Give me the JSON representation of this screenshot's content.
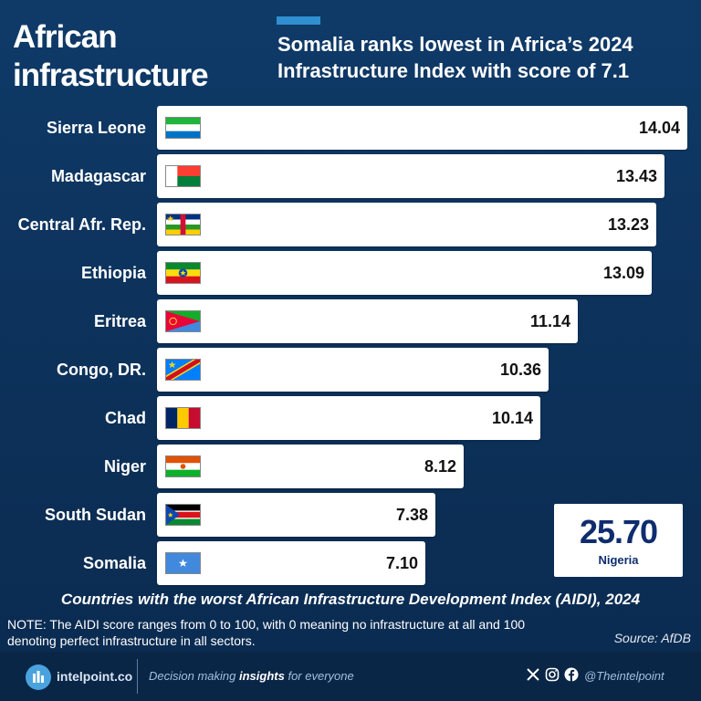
{
  "header": {
    "title": "African infrastructure",
    "subtitle": "Somalia ranks lowest in Africa’s 2024 Infrastructure Index with score of 7.1"
  },
  "colors": {
    "background": "#0f3a68",
    "bar": "#ffffff",
    "accent": "#2f8fd0",
    "highlight_text": "#0f2d6e"
  },
  "chart_data": {
    "type": "bar",
    "orientation": "horizontal",
    "title": "Countries with the worst African Infrastructure Development Index (AIDI), 2024",
    "categories": [
      "Sierra Leone",
      "Madagascar",
      "Central Afr. Rep.",
      "Ethiopia",
      "Eritrea",
      "Congo, DR.",
      "Chad",
      "Niger",
      "South Sudan",
      "Somalia"
    ],
    "values": [
      14.04,
      13.43,
      13.23,
      13.09,
      11.14,
      10.36,
      10.14,
      8.12,
      7.38,
      7.1
    ],
    "value_labels": [
      "14.04",
      "13.43",
      "13.23",
      "13.09",
      "11.14",
      "10.36",
      "10.14",
      "8.12",
      "7.38",
      "7.10"
    ],
    "flags": [
      "sierra-leone-flag",
      "madagascar-flag",
      "central-african-republic-flag",
      "ethiopia-flag",
      "eritrea-flag",
      "dr-congo-flag",
      "chad-flag",
      "niger-flag",
      "south-sudan-flag",
      "somalia-flag"
    ],
    "xlim": [
      0,
      14.04
    ],
    "grid": false,
    "legend": "none",
    "highlight": {
      "label": "Nigeria",
      "value": "25.70"
    }
  },
  "notes": {
    "note": "NOTE: The AIDI score ranges from 0 to 100, with 0 meaning no infrastructure at all and 100 denoting perfect infrastructure in all sectors.",
    "source": "Source: AfDB"
  },
  "footer": {
    "brand": "intelpoint.co",
    "tagline_before": "Decision making ",
    "tagline_bold": "insights",
    "tagline_after": " for everyone",
    "handle": "@Theintelpoint",
    "icons": [
      "x-icon",
      "instagram-icon",
      "facebook-icon"
    ]
  }
}
